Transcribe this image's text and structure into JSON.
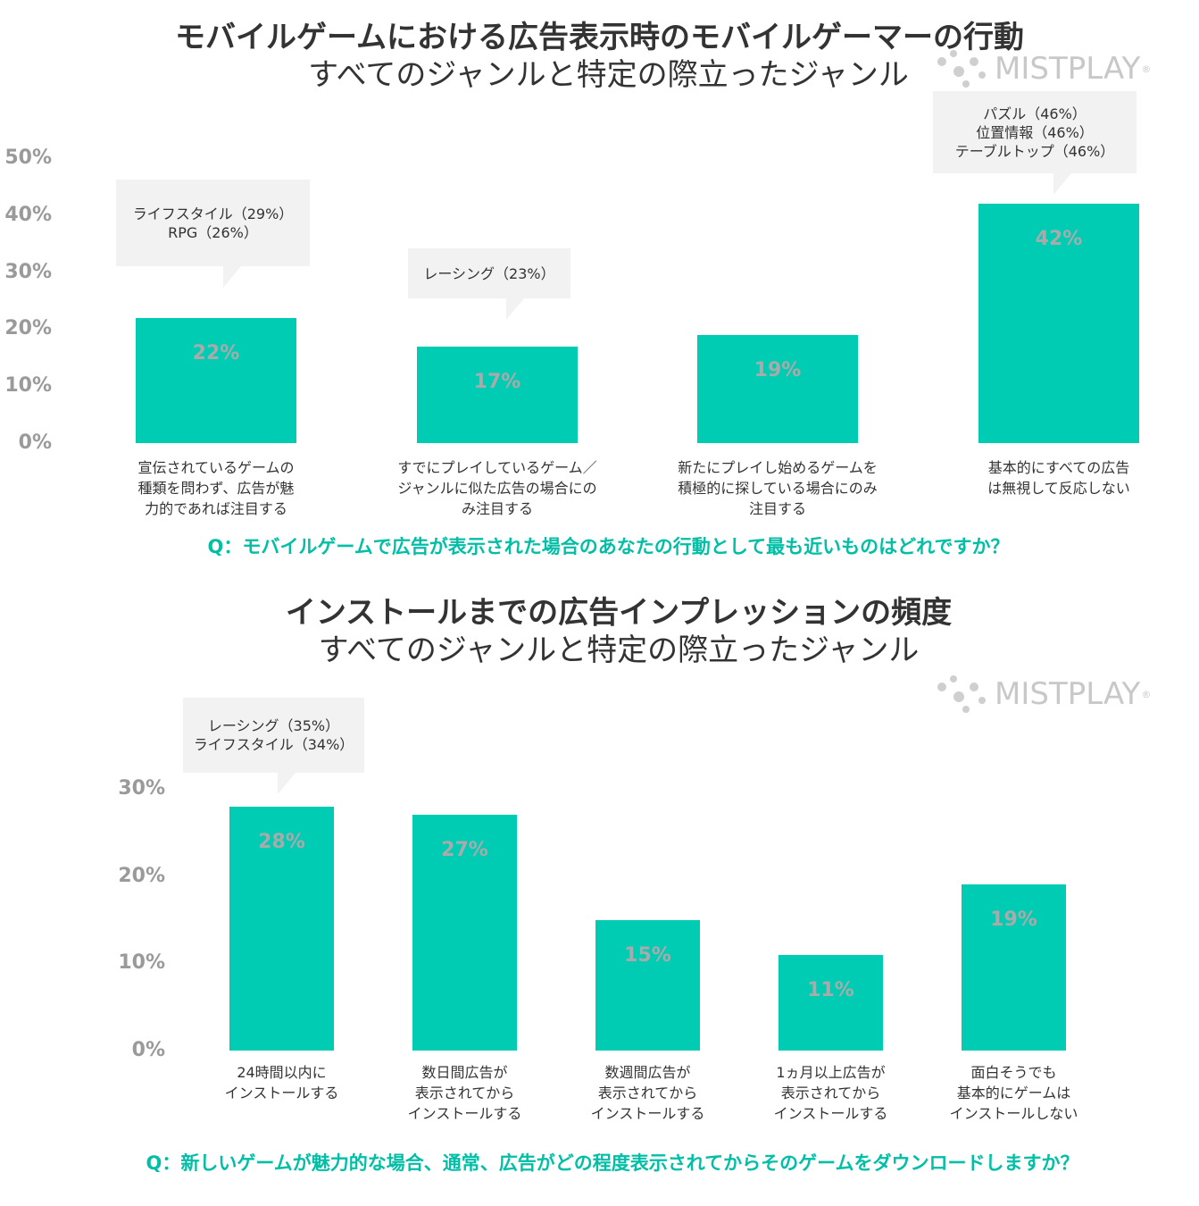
{
  "chart_data": [
    {
      "type": "bar",
      "title": "モバイルゲームにおける広告表示時のモバイルゲーマーの行動",
      "subtitle": "すべてのジャンルと特定の際立ったジャンル",
      "ylim": [
        0,
        50
      ],
      "yticks": [
        "50%",
        "40%",
        "30%",
        "20%",
        "10%",
        "0%"
      ],
      "categories": [
        "宣伝されているゲームの\n種類を問わず、広告が魅\n力的であれば注目する",
        "すでにプレイしているゲーム／\nジャンルに似た広告の場合にの\nみ注目する",
        "新たにプレイし始めるゲームを\n積極的に探している場合にのみ\n注目する",
        "基本的にすべての広告\nは無視して反応しない"
      ],
      "values": [
        22,
        17,
        19,
        42
      ],
      "value_labels": [
        "22%",
        "17%",
        "19%",
        "42%"
      ],
      "annotations": [
        {
          "bar": 0,
          "text": "ライフスタイル（29%）\nRPG（26%）"
        },
        {
          "bar": 1,
          "text": "レーシング（23%）"
        },
        {
          "bar": 3,
          "text": "パズル（46%）\n位置情報（46%）\nテーブルトップ（46%）"
        }
      ],
      "question": "Q：モバイルゲームで広告が表示された場合のあなたの行動として最も近いものはどれですか？",
      "grid": false
    },
    {
      "type": "bar",
      "title": "インストールまでの広告インプレッションの頻度",
      "subtitle": "すべてのジャンルと特定の際立ったジャンル",
      "ylim": [
        0,
        30
      ],
      "yticks": [
        "30%",
        "20%",
        "10%",
        "0%"
      ],
      "categories": [
        "24時間以内に\nインストールする",
        "数日間広告が\n表示されてから\nインストールする",
        "数週間広告が\n表示されてから\nインストールする",
        "1ヵ月以上広告が\n表示されてから\nインストールする",
        "面白そうでも\n基本的にゲームは\nインストールしない"
      ],
      "values": [
        28,
        27,
        15,
        11,
        19
      ],
      "value_labels": [
        "28%",
        "27%",
        "15%",
        "11%",
        "19%"
      ],
      "annotations": [
        {
          "bar": 0,
          "text": "レーシング（35%）\nライフスタイル（34%）"
        }
      ],
      "question": "Q：新しいゲームが魅力的な場合、通常、広告がどの程度表示されてからそのゲームをダウンロードしますか？",
      "grid": false
    }
  ],
  "logo": {
    "text": "MISTPLAY",
    "mark": "®",
    "color": "#c8c8c8"
  },
  "colors": {
    "bar": "#00ccb3",
    "question": "#00bfa6",
    "value_label": "#aaaaaa",
    "tick": "#9a9a9a",
    "callout": "#f2f2f2"
  }
}
